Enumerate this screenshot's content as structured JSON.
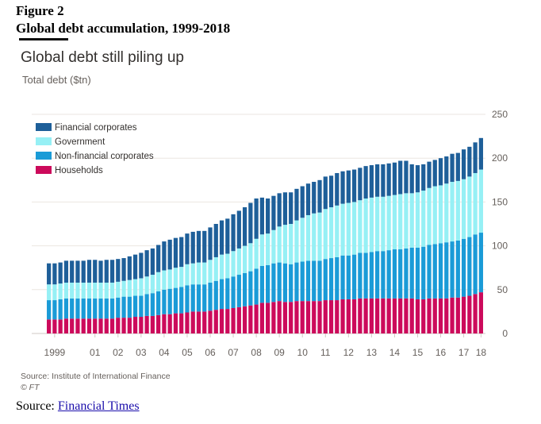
{
  "figure": {
    "label": "Figure 2",
    "title": "Global debt accumulation, 1999-2018"
  },
  "source_line": {
    "prefix": "Source: ",
    "link_text": "Financial Times"
  },
  "chart_data": {
    "type": "bar",
    "stacked": true,
    "title": "Global debt still piling up",
    "ylabel": "Total debt ($tn)",
    "xlabel": "",
    "ylim": [
      0,
      250
    ],
    "yticks": [
      0,
      50,
      100,
      150,
      200,
      250
    ],
    "grid": true,
    "legend_position": "top-left",
    "x_tick_labels": [
      {
        "label": "1999",
        "index": 1
      },
      {
        "label": "01",
        "index": 8
      },
      {
        "label": "02",
        "index": 12
      },
      {
        "label": "03",
        "index": 16
      },
      {
        "label": "04",
        "index": 20
      },
      {
        "label": "05",
        "index": 24
      },
      {
        "label": "06",
        "index": 28
      },
      {
        "label": "07",
        "index": 32
      },
      {
        "label": "08",
        "index": 36
      },
      {
        "label": "09",
        "index": 40
      },
      {
        "label": "10",
        "index": 44
      },
      {
        "label": "11",
        "index": 48
      },
      {
        "label": "12",
        "index": 52
      },
      {
        "label": "13",
        "index": 56
      },
      {
        "label": "14",
        "index": 60
      },
      {
        "label": "15",
        "index": 64
      },
      {
        "label": "16",
        "index": 68
      },
      {
        "label": "17",
        "index": 72
      },
      {
        "label": "18",
        "index": 75
      }
    ],
    "series": [
      {
        "name": "Households",
        "color": "#cc0a5b",
        "values": [
          16,
          16,
          16,
          17,
          17,
          17,
          17,
          17,
          17,
          17,
          17,
          17,
          18,
          18,
          18,
          19,
          19,
          20,
          20,
          21,
          22,
          22,
          23,
          23,
          24,
          25,
          25,
          25,
          26,
          27,
          28,
          28,
          29,
          30,
          31,
          32,
          33,
          35,
          35,
          36,
          37,
          36,
          36,
          37,
          37,
          37,
          37,
          37,
          38,
          38,
          38,
          39,
          39,
          39,
          40,
          40,
          40,
          40,
          40,
          40,
          40,
          40,
          40,
          40,
          39,
          39,
          40,
          40,
          40,
          40,
          41,
          41,
          42,
          43,
          45,
          47
        ]
      },
      {
        "name": "Non-financial corporates",
        "color": "#1a9bd7",
        "values": [
          22,
          22,
          23,
          23,
          23,
          23,
          23,
          23,
          23,
          23,
          23,
          23,
          23,
          24,
          24,
          24,
          24,
          25,
          26,
          27,
          28,
          29,
          29,
          30,
          31,
          31,
          31,
          31,
          32,
          33,
          34,
          35,
          36,
          37,
          38,
          39,
          41,
          42,
          43,
          44,
          44,
          44,
          43,
          44,
          45,
          46,
          46,
          46,
          47,
          48,
          49,
          50,
          50,
          51,
          52,
          52,
          53,
          54,
          54,
          55,
          56,
          56,
          57,
          58,
          59,
          60,
          61,
          62,
          63,
          64,
          64,
          65,
          66,
          67,
          68,
          68
        ]
      },
      {
        "name": "Government",
        "color": "#96f0f5",
        "values": [
          18,
          18,
          18,
          18,
          18,
          18,
          18,
          18,
          18,
          18,
          18,
          18,
          18,
          18,
          19,
          19,
          20,
          20,
          21,
          22,
          22,
          22,
          23,
          23,
          24,
          24,
          25,
          25,
          26,
          27,
          28,
          28,
          29,
          30,
          31,
          32,
          34,
          36,
          36,
          38,
          41,
          44,
          46,
          48,
          50,
          52,
          54,
          55,
          57,
          58,
          59,
          59,
          60,
          60,
          60,
          62,
          62,
          62,
          62,
          62,
          62,
          63,
          63,
          62,
          63,
          64,
          65,
          66,
          66,
          67,
          68,
          68,
          68,
          69,
          70,
          72
        ]
      },
      {
        "name": "Financial corporates",
        "color": "#1e5f99",
        "values": [
          24,
          24,
          24,
          25,
          25,
          25,
          25,
          26,
          26,
          25,
          26,
          26,
          26,
          26,
          27,
          28,
          29,
          30,
          30,
          31,
          33,
          34,
          34,
          34,
          35,
          36,
          36,
          36,
          37,
          38,
          39,
          40,
          42,
          43,
          44,
          46,
          46,
          42,
          40,
          39,
          38,
          37,
          36,
          36,
          36,
          36,
          36,
          37,
          37,
          36,
          37,
          37,
          37,
          37,
          37,
          37,
          37,
          37,
          37,
          37,
          37,
          38,
          37,
          33,
          31,
          30,
          30,
          30,
          31,
          31,
          32,
          32,
          34,
          34,
          35,
          36
        ]
      }
    ]
  },
  "source_note": "Source: Institute of International Finance",
  "copyright": "© FT"
}
